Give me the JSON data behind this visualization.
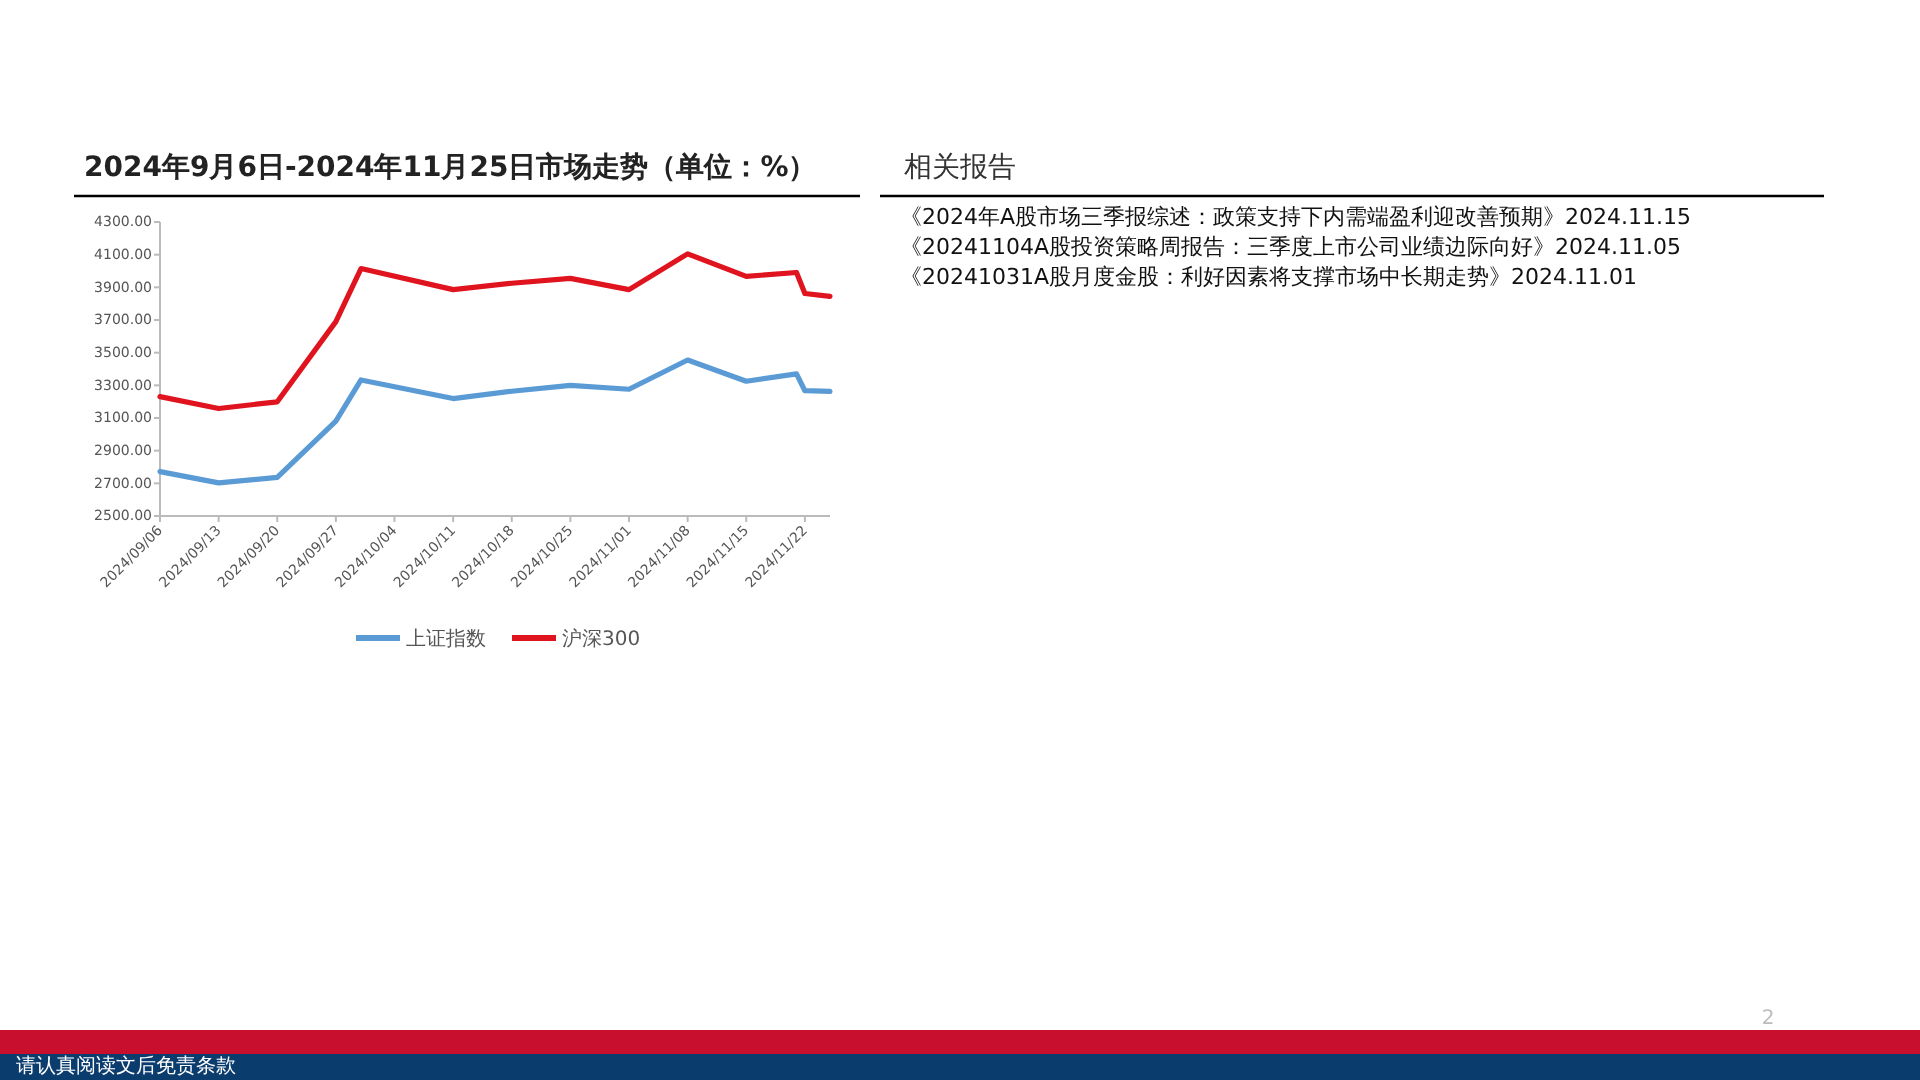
{
  "chart_data": {
    "type": "line",
    "title": "2024年9月6日-2024年11月25日市场走势（单位：%）",
    "x": [
      "2024-09-06",
      "2024-09-13",
      "2024-09-20",
      "2024-09-27",
      "2024-09-30",
      "2024-10-11",
      "2024-10-18",
      "2024-10-25",
      "2024-11-01",
      "2024-11-08",
      "2024-11-15",
      "2024-11-21",
      "2024-11-22",
      "2024-11-25"
    ],
    "series": [
      {
        "name": "上证指数",
        "color": "#5b9bd5",
        "values": [
          2772,
          2703,
          2736,
          3081,
          3333,
          3219,
          3264,
          3300,
          3276,
          3455,
          3325,
          3370,
          3267,
          3263
        ]
      },
      {
        "name": "沪深300",
        "color": "#e0141e",
        "values": [
          3231,
          3158,
          3199,
          3690,
          4015,
          3886,
          3925,
          3955,
          3886,
          4105,
          3967,
          3991,
          3862,
          3845
        ]
      }
    ],
    "xlim": [
      "2024-09-06",
      "2024-11-25"
    ],
    "xticks": [
      {
        "value": "2024-09-06",
        "label": "2024/09/06"
      },
      {
        "value": "2024-09-13",
        "label": "2024/09/13"
      },
      {
        "value": "2024-09-20",
        "label": "2024/09/20"
      },
      {
        "value": "2024-09-27",
        "label": "2024/09/27"
      },
      {
        "value": "2024-10-04",
        "label": "2024/10/04"
      },
      {
        "value": "2024-10-11",
        "label": "2024/10/11"
      },
      {
        "value": "2024-10-18",
        "label": "2024/10/18"
      },
      {
        "value": "2024-10-25",
        "label": "2024/10/25"
      },
      {
        "value": "2024-11-01",
        "label": "2024/11/01"
      },
      {
        "value": "2024-11-08",
        "label": "2024/11/08"
      },
      {
        "value": "2024-11-15",
        "label": "2024/11/15"
      },
      {
        "value": "2024-11-22",
        "label": "2024/11/22"
      }
    ],
    "ylim": [
      2500,
      4300
    ],
    "yticks": [
      {
        "value": 2500,
        "label": "2500.00"
      },
      {
        "value": 2700,
        "label": "2700.00"
      },
      {
        "value": 2900,
        "label": "2900.00"
      },
      {
        "value": 3100,
        "label": "3100.00"
      },
      {
        "value": 3300,
        "label": "3300.00"
      },
      {
        "value": 3500,
        "label": "3500.00"
      },
      {
        "value": 3700,
        "label": "3700.00"
      },
      {
        "value": 3900,
        "label": "3900.00"
      },
      {
        "value": 4100,
        "label": "4100.00"
      },
      {
        "value": 4300,
        "label": "4300.00"
      }
    ],
    "grid": false,
    "legend": "bottom",
    "marker": "none",
    "line_style": "solid",
    "annotations": [
      "相关报告",
      "《2024年A股市场三季报综述：政策支持下内需端盈利迎改善预期》2024.11.15",
      "《20241104A股投资策略周报告：三季度上市公司业绩边际向好》2024.11.05",
      "《20241031A股月度金股：利好因素将支撑市场中长期走势》2024.11.01",
      "请认真阅读文后免责条款",
      "2"
    ]
  }
}
